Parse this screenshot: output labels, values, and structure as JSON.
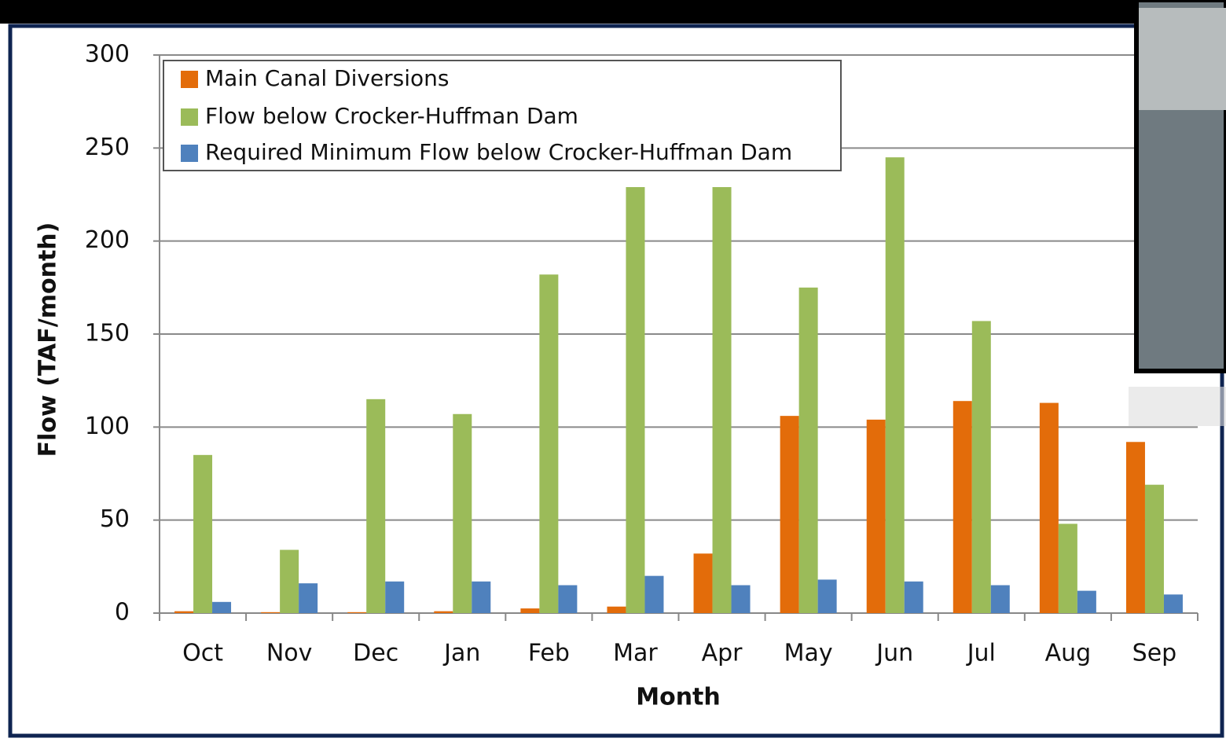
{
  "chart_data": {
    "type": "bar",
    "x_label": "Month",
    "y_label": "Flow (TAF/month)",
    "categories": [
      "Oct",
      "Nov",
      "Dec",
      "Jan",
      "Feb",
      "Mar",
      "Apr",
      "May",
      "Jun",
      "Jul",
      "Aug",
      "Sep"
    ],
    "series": [
      {
        "name": "Main Canal Diversions",
        "color": "#e36c0a",
        "values": [
          1,
          0.5,
          0.5,
          1,
          2.5,
          3.5,
          32,
          106,
          104,
          114,
          113,
          92
        ]
      },
      {
        "name": "Flow below Crocker-Huffman Dam",
        "color": "#9bbb59",
        "values": [
          85,
          34,
          115,
          107,
          182,
          229,
          229,
          175,
          245,
          157,
          48,
          69
        ]
      },
      {
        "name": "Required Minimum Flow below Crocker-Huffman Dam",
        "color": "#4f81bd",
        "values": [
          6,
          16,
          17,
          17,
          15,
          20,
          15,
          18,
          17,
          15,
          12,
          10
        ]
      }
    ],
    "ylim": [
      0,
      300
    ],
    "yticks": [
      0,
      50,
      100,
      150,
      200,
      250,
      300
    ],
    "grid": true,
    "legend": "upper left"
  }
}
